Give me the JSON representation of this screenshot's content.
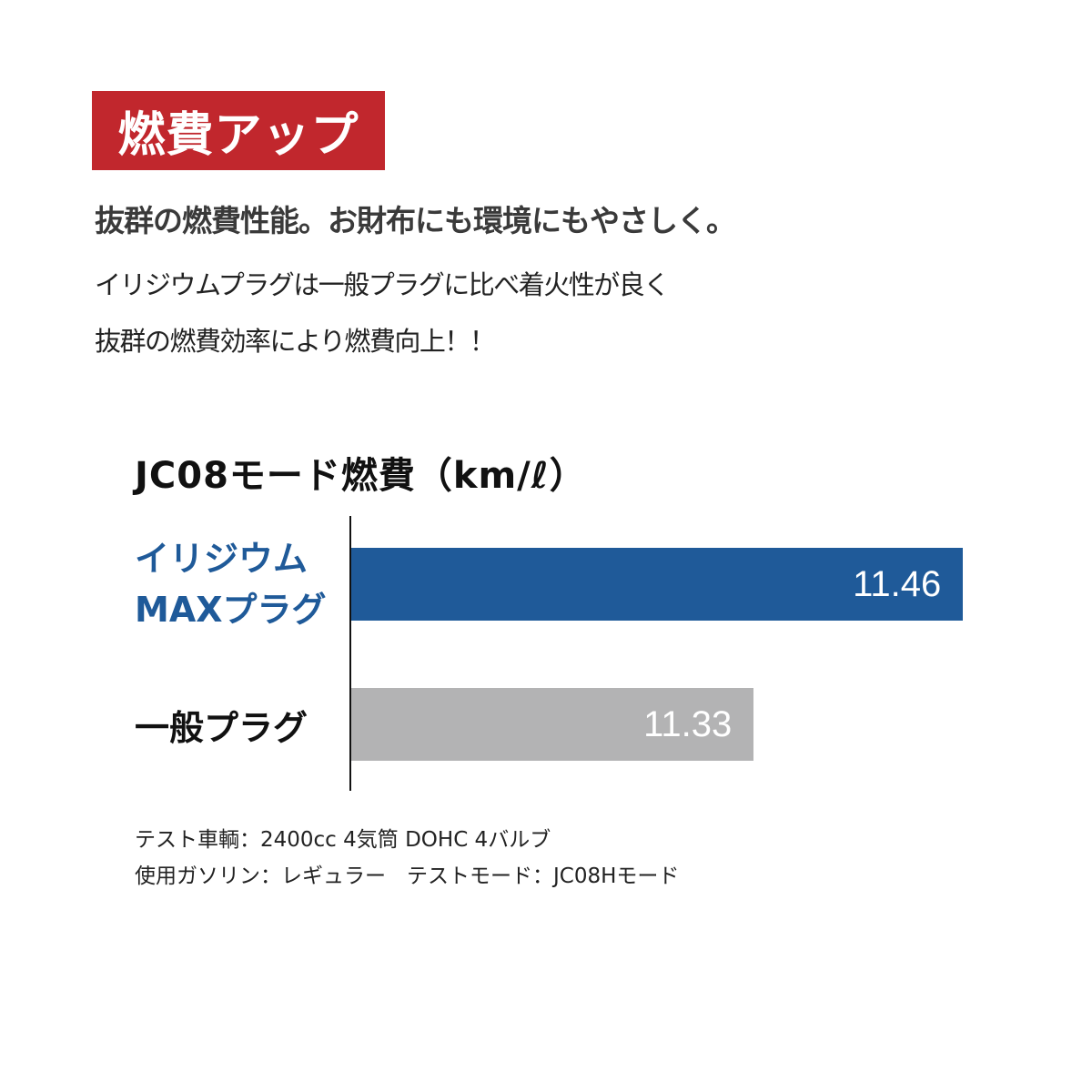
{
  "badge": "燃費アップ",
  "headline": "抜群の燃費性能。お財布にも環境にもやさしく。",
  "body_lines": [
    "イリジウムプラグは一般プラグに比べ着火性が良く",
    "抜群の燃費効率により燃費向上！！"
  ],
  "colors": {
    "badge": "#c1272d",
    "iridium": "#1f5a99",
    "standard": "#b3b3b4"
  },
  "chart_data": {
    "type": "bar",
    "orientation": "horizontal",
    "title": "JC08モード燃費（km/ℓ）",
    "categories": [
      "イリジウム MAXプラグ",
      "一般プラグ"
    ],
    "category_lines": [
      [
        "イリジウム",
        "MAXプラグ"
      ],
      [
        "一般プラグ"
      ]
    ],
    "values": [
      11.46,
      11.33
    ],
    "value_labels": [
      "11.46",
      "11.33"
    ],
    "xlim": [
      11.08,
      11.5
    ],
    "grid": false
  },
  "notes": [
    "テスト車輌：2400cc 4気筒 DOHC 4バルブ",
    "使用ガソリン：レギュラー　テストモード：JC08Hモード"
  ]
}
